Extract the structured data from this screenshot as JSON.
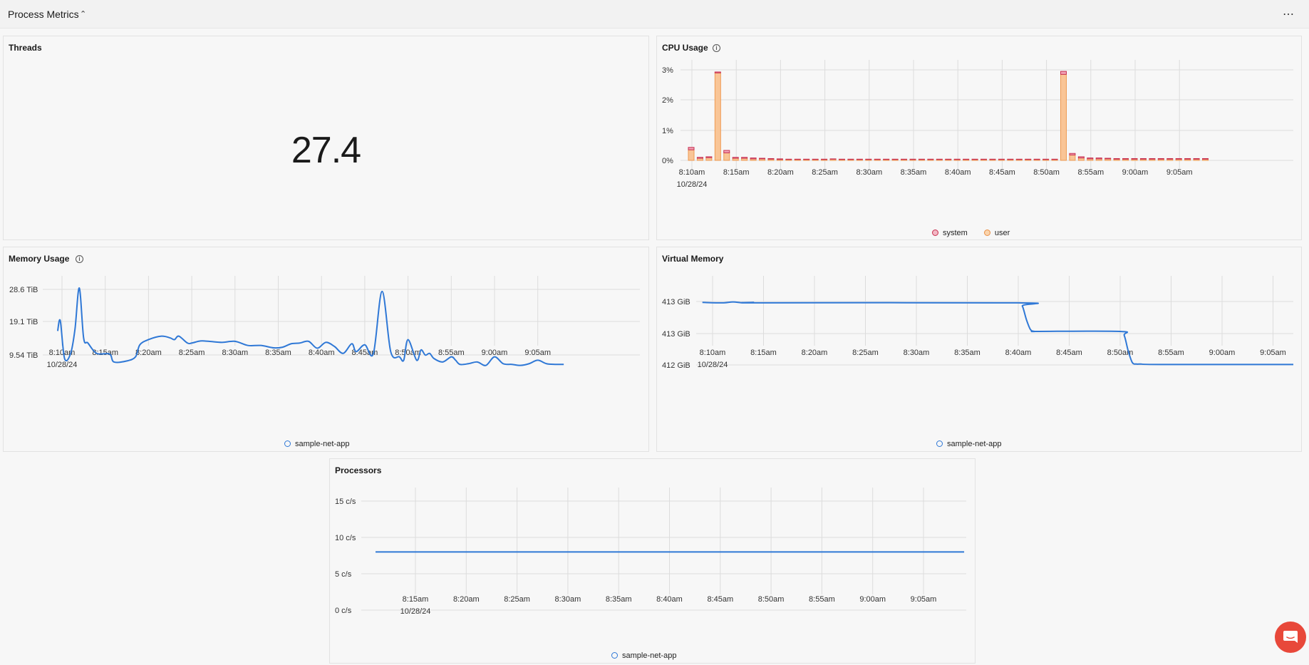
{
  "header": {
    "title": "Process Metrics",
    "chevron_icon": "chevron-up-icon",
    "more_icon": "more-horizontal-icon"
  },
  "threads": {
    "title": "Threads",
    "value": "27.4"
  },
  "cpu": {
    "title": "CPU Usage",
    "chart_data": {
      "type": "bar",
      "stacked": true,
      "y_ticks": [
        "3%",
        "2%",
        "1%",
        "0%"
      ],
      "ylim": [
        0,
        3.5
      ],
      "x_ticks": [
        "8:10am",
        "8:15am",
        "8:20am",
        "8:25am",
        "8:30am",
        "8:35am",
        "8:40am",
        "8:45am",
        "8:50am",
        "8:55am",
        "9:00am",
        "9:05am"
      ],
      "x_date": "10/28/24",
      "minutes": [
        10,
        11,
        12,
        13,
        14,
        15,
        16,
        17,
        18,
        19,
        20,
        21,
        22,
        23,
        24,
        25,
        26,
        27,
        28,
        29,
        30,
        31,
        32,
        33,
        34,
        35,
        36,
        37,
        38,
        39,
        40,
        41,
        42,
        43,
        44,
        45,
        46,
        47,
        48,
        49,
        50,
        51,
        52,
        53,
        54,
        55,
        56,
        57,
        58,
        59,
        60,
        61,
        62,
        63,
        64,
        65,
        66,
        67,
        68
      ],
      "series": [
        {
          "name": "system",
          "color": "#d9486b",
          "values": [
            0.08,
            0.03,
            0.03,
            0.03,
            0.08,
            0.03,
            0.03,
            0.03,
            0.02,
            0.02,
            0.02,
            0.01,
            0.01,
            0.01,
            0.01,
            0.01,
            0.01,
            0.01,
            0.01,
            0.01,
            0.01,
            0.01,
            0.01,
            0.01,
            0.01,
            0.01,
            0.01,
            0.01,
            0.01,
            0.01,
            0.01,
            0.01,
            0.01,
            0.01,
            0.01,
            0.01,
            0.01,
            0.01,
            0.01,
            0.01,
            0.01,
            0.01,
            0.1,
            0.05,
            0.04,
            0.03,
            0.03,
            0.02,
            0.02,
            0.02,
            0.02,
            0.02,
            0.02,
            0.02,
            0.02,
            0.02,
            0.02,
            0.02,
            0.02
          ]
        },
        {
          "name": "user",
          "color": "#f5a561",
          "values": [
            0.35,
            0.07,
            0.09,
            2.9,
            0.25,
            0.07,
            0.07,
            0.05,
            0.05,
            0.04,
            0.03,
            0.03,
            0.03,
            0.03,
            0.03,
            0.03,
            0.04,
            0.03,
            0.03,
            0.03,
            0.03,
            0.03,
            0.03,
            0.03,
            0.03,
            0.03,
            0.03,
            0.03,
            0.03,
            0.03,
            0.03,
            0.03,
            0.03,
            0.03,
            0.03,
            0.03,
            0.03,
            0.03,
            0.03,
            0.03,
            0.03,
            0.03,
            2.85,
            0.18,
            0.08,
            0.05,
            0.05,
            0.05,
            0.04,
            0.04,
            0.04,
            0.04,
            0.04,
            0.04,
            0.04,
            0.04,
            0.04,
            0.04,
            0.04
          ]
        }
      ],
      "legend": [
        "system",
        "user"
      ]
    }
  },
  "memory": {
    "title": "Memory Usage",
    "chart_data": {
      "type": "line",
      "y_ticks": [
        "28.6 TiB",
        "19.1 TiB",
        "9.54 TiB"
      ],
      "x_ticks": [
        "8:10am",
        "8:15am",
        "8:20am",
        "8:25am",
        "8:30am",
        "8:35am",
        "8:40am",
        "8:45am",
        "8:50am",
        "8:55am",
        "9:00am",
        "9:05am"
      ],
      "x_date": "10/28/24",
      "series": [
        {
          "name": "sample-net-app",
          "color": "#2f78d6",
          "x": [
            9.5,
            9.8,
            10.3,
            11.0,
            11.5,
            12.0,
            12.5,
            13.0,
            14.0,
            15.5,
            16.0,
            17.5,
            18.5,
            19.0,
            20.0,
            21.5,
            22.5,
            23.0,
            23.5,
            24.5,
            25.0,
            26.0,
            27.0,
            28.5,
            30.0,
            31.5,
            33.0,
            34.5,
            35.5,
            36.5,
            37.5,
            38.5,
            39.5,
            40.5,
            41.5,
            42.5,
            43.5,
            44.0,
            45.0,
            46.0,
            47.0,
            48.0,
            49.0,
            49.5,
            50.0,
            51.0,
            51.5,
            52.0,
            52.5,
            53.0,
            54.0,
            55.0,
            55.5,
            56.0,
            57.0,
            58.0,
            59.0,
            60.0,
            61.0,
            62.0,
            63.0,
            64.0,
            65.0,
            66.0,
            67.0,
            68.0
          ],
          "y": [
            16.5,
            19.5,
            8.5,
            10.0,
            17.0,
            29.0,
            14.5,
            13.0,
            10.0,
            9.8,
            7.5,
            7.8,
            9.0,
            12.5,
            14.0,
            15.0,
            14.5,
            14.0,
            15.0,
            13.0,
            13.0,
            13.6,
            13.5,
            13.2,
            13.5,
            12.3,
            12.3,
            11.6,
            11.8,
            12.8,
            13.0,
            13.5,
            11.5,
            13.2,
            12.0,
            10.0,
            12.8,
            10.5,
            12.5,
            10.0,
            28.0,
            10.5,
            9.0,
            8.0,
            14.0,
            8.0,
            11.0,
            9.5,
            10.0,
            8.5,
            7.5,
            9.0,
            8.0,
            6.8,
            7.0,
            7.5,
            6.5,
            9.0,
            7.0,
            6.8,
            6.5,
            7.0,
            8.0,
            7.0,
            6.8,
            6.8
          ]
        }
      ],
      "legend": [
        "sample-net-app"
      ]
    }
  },
  "virtual": {
    "title": "Virtual Memory",
    "chart_data": {
      "type": "line",
      "y_ticks": [
        "413 GiB",
        "413 GiB",
        "412 GiB"
      ],
      "x_ticks": [
        "8:10am",
        "8:15am",
        "8:20am",
        "8:25am",
        "8:30am",
        "8:35am",
        "8:40am",
        "8:45am",
        "8:50am",
        "8:55am",
        "9:00am",
        "9:05am"
      ],
      "x_date": "10/28/24",
      "series": [
        {
          "name": "sample-net-app",
          "color": "#2f78d6",
          "x": [
            9.0,
            11.0,
            12.0,
            13.0,
            14.0,
            15.0,
            40.0,
            40.4,
            40.8,
            41.2,
            41.6,
            42.0,
            50.0,
            50.4,
            50.8,
            51.2,
            51.6,
            52.0,
            54.0,
            68.0
          ],
          "y": [
            413.38,
            413.37,
            413.39,
            413.37,
            413.38,
            413.37,
            413.37,
            413.3,
            413.0,
            412.78,
            412.74,
            412.74,
            412.74,
            412.65,
            412.3,
            412.05,
            412.02,
            412.02,
            412.01,
            412.01
          ]
        }
      ],
      "legend": [
        "sample-net-app"
      ]
    }
  },
  "processors": {
    "title": "Processors",
    "chart_data": {
      "type": "line",
      "y_ticks": [
        "15 c/s",
        "10 c/s",
        "5 c/s",
        "0 c/s"
      ],
      "ylim": [
        0,
        15
      ],
      "x_ticks": [
        "8:15am",
        "8:20am",
        "8:25am",
        "8:30am",
        "8:35am",
        "8:40am",
        "8:45am",
        "8:50am",
        "8:55am",
        "9:00am",
        "9:05am"
      ],
      "x_date": "10/28/24",
      "series": [
        {
          "name": "sample-net-app",
          "color": "#2f78d6",
          "x": [
            11.0,
            69.0
          ],
          "y": [
            8,
            8
          ]
        }
      ],
      "legend": [
        "sample-net-app"
      ]
    }
  },
  "chat": {
    "icon": "chat-icon"
  }
}
